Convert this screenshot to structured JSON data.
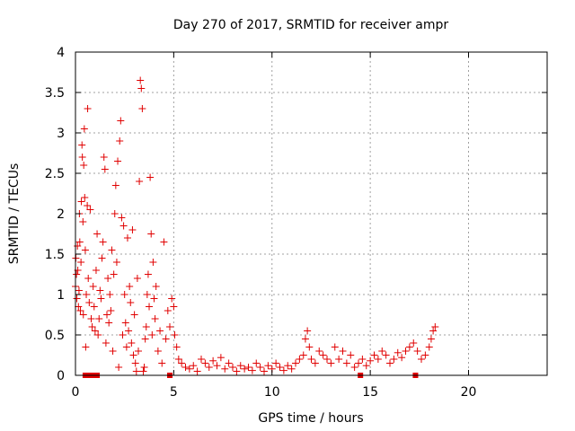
{
  "chart_data": {
    "type": "scatter",
    "title": "Day 270 of 2017, SRMTID for receiver ampr",
    "xlabel": "GPS time / hours",
    "ylabel": "SRMTID / TECUs",
    "xlim": [
      0,
      24
    ],
    "ylim": [
      0,
      4
    ],
    "x_ticks": [
      "0",
      "5",
      "10",
      "15",
      "20"
    ],
    "y_ticks": [
      "0",
      "0.5",
      "1",
      "1.5",
      "2",
      "2.5",
      "3",
      "3.5",
      "4"
    ],
    "grid": true,
    "marker": "+",
    "series": [
      {
        "name": "SRMTID",
        "color": "#e00000",
        "points": [
          [
            0.0,
            1.1
          ],
          [
            0.02,
            1.45
          ],
          [
            0.05,
            1.25
          ],
          [
            0.07,
            0.95
          ],
          [
            0.1,
            1.6
          ],
          [
            0.12,
            1.3
          ],
          [
            0.15,
            0.85
          ],
          [
            0.18,
            1.05
          ],
          [
            0.2,
            2.0
          ],
          [
            0.22,
            1.65
          ],
          [
            0.25,
            0.8
          ],
          [
            0.28,
            1.4
          ],
          [
            0.3,
            2.15
          ],
          [
            0.33,
            2.85
          ],
          [
            0.35,
            2.7
          ],
          [
            0.38,
            1.9
          ],
          [
            0.4,
            0.75
          ],
          [
            0.42,
            2.6
          ],
          [
            0.45,
            3.05
          ],
          [
            0.47,
            2.2
          ],
          [
            0.5,
            1.55
          ],
          [
            0.52,
            0.35
          ],
          [
            0.55,
            1.0
          ],
          [
            0.6,
            2.1
          ],
          [
            0.62,
            3.3
          ],
          [
            0.65,
            1.2
          ],
          [
            0.7,
            0.9
          ],
          [
            0.75,
            2.05
          ],
          [
            0.8,
            0.7
          ],
          [
            0.85,
            0.6
          ],
          [
            0.9,
            1.1
          ],
          [
            0.95,
            0.85
          ],
          [
            1.0,
            0.55
          ],
          [
            1.05,
            1.3
          ],
          [
            1.1,
            1.75
          ],
          [
            1.15,
            0.5
          ],
          [
            1.2,
            0.7
          ],
          [
            1.25,
            1.05
          ],
          [
            1.3,
            0.95
          ],
          [
            1.35,
            1.45
          ],
          [
            1.4,
            1.65
          ],
          [
            1.45,
            2.7
          ],
          [
            1.5,
            2.55
          ],
          [
            1.55,
            0.4
          ],
          [
            1.6,
            0.75
          ],
          [
            1.65,
            1.2
          ],
          [
            1.7,
            0.65
          ],
          [
            1.75,
            1.0
          ],
          [
            1.8,
            0.8
          ],
          [
            1.85,
            1.55
          ],
          [
            1.9,
            0.3
          ],
          [
            1.95,
            1.25
          ],
          [
            2.0,
            2.0
          ],
          [
            2.05,
            2.35
          ],
          [
            2.1,
            1.4
          ],
          [
            2.15,
            2.65
          ],
          [
            2.2,
            0.1
          ],
          [
            2.25,
            2.9
          ],
          [
            2.3,
            3.15
          ],
          [
            2.35,
            1.95
          ],
          [
            2.4,
            0.5
          ],
          [
            2.45,
            1.85
          ],
          [
            2.5,
            1.0
          ],
          [
            2.55,
            0.65
          ],
          [
            2.6,
            0.35
          ],
          [
            2.65,
            1.7
          ],
          [
            2.7,
            0.55
          ],
          [
            2.75,
            1.1
          ],
          [
            2.8,
            0.9
          ],
          [
            2.85,
            0.4
          ],
          [
            2.9,
            1.8
          ],
          [
            2.95,
            0.25
          ],
          [
            3.0,
            0.75
          ],
          [
            3.05,
            0.15
          ],
          [
            3.1,
            0.05
          ],
          [
            3.15,
            1.2
          ],
          [
            3.2,
            0.3
          ],
          [
            3.25,
            2.4
          ],
          [
            3.3,
            3.65
          ],
          [
            3.35,
            3.55
          ],
          [
            3.4,
            3.3
          ],
          [
            3.45,
            0.05
          ],
          [
            3.5,
            0.1
          ],
          [
            3.55,
            0.45
          ],
          [
            3.6,
            0.6
          ],
          [
            3.65,
            1.0
          ],
          [
            3.7,
            1.25
          ],
          [
            3.75,
            0.85
          ],
          [
            3.8,
            2.45
          ],
          [
            3.85,
            1.75
          ],
          [
            3.9,
            0.5
          ],
          [
            3.95,
            1.4
          ],
          [
            4.0,
            0.95
          ],
          [
            4.05,
            0.7
          ],
          [
            4.1,
            1.1
          ],
          [
            4.2,
            0.3
          ],
          [
            4.3,
            0.55
          ],
          [
            4.4,
            0.15
          ],
          [
            4.5,
            1.65
          ],
          [
            4.6,
            0.45
          ],
          [
            4.7,
            0.8
          ],
          [
            4.8,
            0.6
          ],
          [
            4.9,
            0.95
          ],
          [
            5.0,
            0.85
          ],
          [
            5.05,
            0.5
          ],
          [
            5.15,
            0.35
          ],
          [
            5.25,
            0.2
          ],
          [
            5.4,
            0.15
          ],
          [
            5.6,
            0.1
          ],
          [
            5.8,
            0.08
          ],
          [
            6.0,
            0.12
          ],
          [
            6.2,
            0.05
          ],
          [
            6.4,
            0.2
          ],
          [
            6.6,
            0.15
          ],
          [
            6.8,
            0.1
          ],
          [
            7.0,
            0.18
          ],
          [
            7.2,
            0.12
          ],
          [
            7.4,
            0.22
          ],
          [
            7.6,
            0.08
          ],
          [
            7.8,
            0.15
          ],
          [
            8.0,
            0.1
          ],
          [
            8.2,
            0.05
          ],
          [
            8.4,
            0.12
          ],
          [
            8.6,
            0.08
          ],
          [
            8.8,
            0.1
          ],
          [
            9.0,
            0.06
          ],
          [
            9.2,
            0.15
          ],
          [
            9.4,
            0.1
          ],
          [
            9.6,
            0.05
          ],
          [
            9.8,
            0.12
          ],
          [
            10.0,
            0.08
          ],
          [
            10.2,
            0.15
          ],
          [
            10.4,
            0.1
          ],
          [
            10.6,
            0.06
          ],
          [
            10.8,
            0.12
          ],
          [
            11.0,
            0.08
          ],
          [
            11.2,
            0.15
          ],
          [
            11.4,
            0.2
          ],
          [
            11.6,
            0.25
          ],
          [
            11.7,
            0.45
          ],
          [
            11.8,
            0.55
          ],
          [
            11.9,
            0.35
          ],
          [
            12.0,
            0.2
          ],
          [
            12.2,
            0.15
          ],
          [
            12.4,
            0.3
          ],
          [
            12.6,
            0.25
          ],
          [
            12.8,
            0.2
          ],
          [
            13.0,
            0.15
          ],
          [
            13.2,
            0.35
          ],
          [
            13.4,
            0.2
          ],
          [
            13.6,
            0.3
          ],
          [
            13.8,
            0.15
          ],
          [
            14.0,
            0.25
          ],
          [
            14.2,
            0.1
          ],
          [
            14.4,
            0.15
          ],
          [
            14.6,
            0.2
          ],
          [
            14.8,
            0.12
          ],
          [
            15.0,
            0.18
          ],
          [
            15.2,
            0.25
          ],
          [
            15.4,
            0.2
          ],
          [
            15.6,
            0.3
          ],
          [
            15.8,
            0.25
          ],
          [
            16.0,
            0.15
          ],
          [
            16.2,
            0.2
          ],
          [
            16.4,
            0.28
          ],
          [
            16.6,
            0.22
          ],
          [
            16.8,
            0.3
          ],
          [
            17.0,
            0.35
          ],
          [
            17.2,
            0.4
          ],
          [
            17.4,
            0.3
          ],
          [
            17.6,
            0.2
          ],
          [
            17.8,
            0.25
          ],
          [
            18.0,
            0.35
          ],
          [
            18.1,
            0.45
          ],
          [
            18.2,
            0.55
          ],
          [
            18.3,
            0.6
          ]
        ],
        "baseline_points": [
          [
            0.5,
            0.0
          ],
          [
            0.6,
            0.0
          ],
          [
            0.7,
            0.0
          ],
          [
            0.8,
            0.0
          ],
          [
            0.9,
            0.0
          ],
          [
            1.0,
            0.0
          ],
          [
            1.1,
            0.0
          ],
          [
            4.8,
            0.0
          ],
          [
            14.5,
            0.0
          ],
          [
            17.3,
            0.0
          ]
        ]
      }
    ]
  }
}
